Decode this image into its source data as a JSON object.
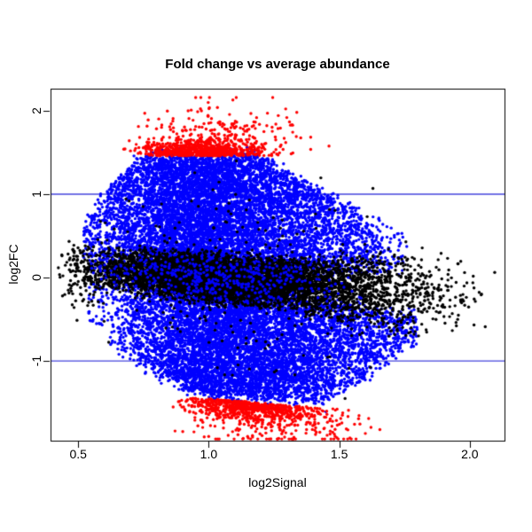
{
  "figure": {
    "background": "#ffffff",
    "axis_color": "#000000"
  },
  "chart_data": {
    "type": "scatter",
    "title": "Fold change vs average abundance",
    "xlabel": "log2Signal",
    "ylabel": "log2FC",
    "xlim": [
      0.394,
      2.133
    ],
    "ylim": [
      -1.957,
      2.266
    ],
    "x_ticks": [
      0.5,
      1.0,
      1.5,
      2.0
    ],
    "x_tick_labels": [
      "0.5",
      "1.0",
      "1.5",
      "2.0"
    ],
    "y_ticks": [
      -1,
      0,
      1,
      2
    ],
    "y_tick_labels": [
      "-1",
      "0",
      "1",
      "2"
    ],
    "grid": false,
    "legend": "none",
    "hlines": [
      {
        "y": 1,
        "color": "#4444dd"
      },
      {
        "y": -1,
        "color": "#4444dd"
      }
    ],
    "point_colors": {
      "black": "#000000",
      "blue": "#0000ff",
      "red": "#ff0000"
    },
    "generator": {
      "seed": 1337,
      "point_radius": 1.7,
      "tilt": {
        "base": 0.12,
        "slope": -0.24,
        "x0": 0.5
      },
      "env_top": [
        [
          0.44,
          0.3
        ],
        [
          0.55,
          0.75
        ],
        [
          0.63,
          1.15
        ],
        [
          0.72,
          1.4
        ],
        [
          0.8,
          1.47
        ],
        [
          1.18,
          1.47
        ],
        [
          1.32,
          1.22
        ],
        [
          1.48,
          0.98
        ],
        [
          1.62,
          0.7
        ],
        [
          1.78,
          0.45
        ],
        [
          2.12,
          0.3
        ]
      ],
      "env_bottom": [
        [
          0.44,
          -0.3
        ],
        [
          0.56,
          -0.6
        ],
        [
          0.66,
          -0.9
        ],
        [
          0.8,
          -1.15
        ],
        [
          0.95,
          -1.38
        ],
        [
          1.08,
          -1.44
        ],
        [
          1.45,
          -1.48
        ],
        [
          1.6,
          -1.2
        ],
        [
          1.72,
          -0.92
        ],
        [
          1.88,
          -0.58
        ],
        [
          2.12,
          -0.42
        ]
      ],
      "black_halfwidth": [
        [
          0.44,
          0.2
        ],
        [
          0.6,
          0.27
        ],
        [
          1.3,
          0.3
        ],
        [
          1.55,
          0.42
        ],
        [
          1.75,
          0.58
        ],
        [
          1.95,
          0.5
        ],
        [
          2.12,
          0.38
        ]
      ],
      "clusters": [
        {
          "name": "blue-upper",
          "color": "#0000ff",
          "n": 8200,
          "x": {
            "mix": [
              {
                "m": 0.93,
                "s": 0.185,
                "w": 0.58
              },
              {
                "m": 1.22,
                "s": 0.24,
                "w": 0.42
              }
            ],
            "min": 0.52,
            "max": 1.76
          },
          "y": {
            "type": "fill",
            "side": 1,
            "jitter": 0.05
          }
        },
        {
          "name": "blue-lower",
          "color": "#0000ff",
          "n": 7600,
          "x": {
            "mix": [
              {
                "m": 1.02,
                "s": 0.2,
                "w": 0.55
              },
              {
                "m": 1.3,
                "s": 0.25,
                "w": 0.45
              }
            ],
            "min": 0.54,
            "max": 1.8
          },
          "y": {
            "type": "fill",
            "side": -1,
            "jitter": 0.05
          }
        },
        {
          "name": "black-core",
          "color": "#000000",
          "n": 6800,
          "x": {
            "mix": [
              {
                "m": 0.92,
                "s": 0.19,
                "w": 0.54
              },
              {
                "m": 1.25,
                "s": 0.22,
                "w": 0.38
              },
              {
                "m": 1.6,
                "s": 0.17,
                "w": 0.08
              }
            ],
            "min": 0.46,
            "max": 2.1
          },
          "y": {
            "type": "core",
            "widen": 1.12
          }
        },
        {
          "name": "black-right-sparse",
          "color": "#000000",
          "n": 100,
          "x": {
            "mix": [
              {
                "m": 1.82,
                "s": 0.15,
                "w": 1
              }
            ],
            "min": 1.6,
            "max": 2.12
          },
          "y": {
            "type": "core",
            "widen": 0.85
          }
        },
        {
          "name": "black-left-sparse",
          "color": "#000000",
          "n": 90,
          "x": {
            "mix": [
              {
                "m": 0.5,
                "s": 0.07,
                "w": 1
              }
            ],
            "min": 0.42,
            "max": 0.66
          },
          "y": {
            "type": "gauss",
            "mean": 0.05,
            "sd": 0.22
          }
        },
        {
          "name": "black-strays",
          "color": "#000000",
          "n": 150,
          "x": {
            "mix": [
              {
                "m": 1.12,
                "s": 0.26,
                "w": 1
              }
            ],
            "min": 0.58,
            "max": 1.72
          },
          "y": {
            "type": "sym",
            "off": 0.3,
            "sd": 0.45,
            "max": 1.6
          }
        },
        {
          "name": "blue-speckle",
          "color": "#0000ff",
          "n": 500,
          "x": {
            "mix": [
              {
                "m": 1.0,
                "s": 0.25,
                "w": 1
              }
            ],
            "min": 0.55,
            "max": 1.75
          },
          "y": {
            "type": "core",
            "widen": 1.15
          }
        },
        {
          "name": "red-top-band",
          "color": "#ff0000",
          "n": 640,
          "x": {
            "mix": [
              {
                "m": 0.97,
                "s": 0.115,
                "w": 1
              }
            ],
            "min": 0.7,
            "max": 1.34
          },
          "y": {
            "type": "band",
            "base": 1.46,
            "sd": 0.08,
            "side": 1,
            "slope": 0,
            "x0": 1,
            "max": 2.16
          }
        },
        {
          "name": "red-top-scatter",
          "color": "#ff0000",
          "n": 270,
          "x": {
            "mix": [
              {
                "m": 1.02,
                "s": 0.16,
                "w": 1
              }
            ],
            "min": 0.66,
            "max": 1.72
          },
          "y": {
            "type": "band",
            "base": 1.52,
            "sd": 0.24,
            "side": 1,
            "slope": 0,
            "x0": 1,
            "max": 2.16
          }
        },
        {
          "name": "red-bottom-band",
          "color": "#ff0000",
          "n": 600,
          "x": {
            "mix": [
              {
                "m": 1.15,
                "s": 0.14,
                "w": 1
              }
            ],
            "min": 0.88,
            "max": 1.6
          },
          "y": {
            "type": "band",
            "base": 1.44,
            "sd": 0.085,
            "side": -1,
            "slope": 0.25,
            "x0": 0.95,
            "max": 1.95
          }
        },
        {
          "name": "red-bottom-scatter",
          "color": "#ff0000",
          "n": 280,
          "x": {
            "mix": [
              {
                "m": 1.24,
                "s": 0.17,
                "w": 1
              }
            ],
            "min": 0.86,
            "max": 1.68
          },
          "y": {
            "type": "band",
            "base": 1.54,
            "sd": 0.2,
            "side": -1,
            "slope": 0.18,
            "x0": 0.95,
            "max": 1.98
          }
        }
      ]
    }
  }
}
